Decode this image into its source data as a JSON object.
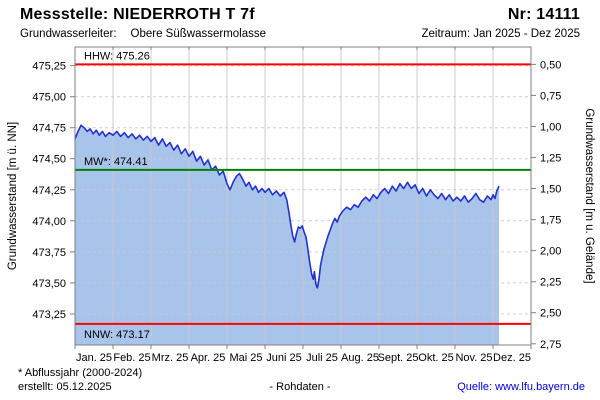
{
  "header": {
    "station_title": "Messstelle: NIEDERROTH T 7f",
    "station_number": "Nr: 14111",
    "aquifer_label": "Grundwasserleiter:",
    "aquifer_value": "Obere Süßwassermolasse",
    "period": "Zeitraum: Jan 2025 - Dez 2025"
  },
  "footer": {
    "footnote": "* Abflussjahr (2000-2024)",
    "created": "erstellt:  05.12.2025",
    "center_label": "- Rohdaten -",
    "source": "Quelle: www.lfu.bayern.de"
  },
  "chart_data": {
    "type": "area",
    "title": "",
    "xlabel": "",
    "ylabel_left": "Grundwasserstand [m ü. NN]",
    "ylabel_right": "Grundwasserstand [m u. Gelände]",
    "x_categories": [
      "Jan. 25",
      "Feb. 25",
      "Mrz. 25",
      "Apr. 25",
      "Mai 25",
      "Juni 25",
      "Juli 25",
      "Aug. 25",
      "Sept. 25",
      "Okt. 25",
      "Nov. 25",
      "Dez. 25"
    ],
    "x_range_months": 12,
    "ylim_left": [
      473.0,
      475.4
    ],
    "ground_level_m_nn": 475.76,
    "grid": true,
    "legend_position": "none",
    "y_ticks_left": [
      {
        "label": "475,25",
        "value": 475.25
      },
      {
        "label": "475,00",
        "value": 475.0
      },
      {
        "label": "474,75",
        "value": 474.75
      },
      {
        "label": "474,50",
        "value": 474.5
      },
      {
        "label": "474,25",
        "value": 474.25
      },
      {
        "label": "474,00",
        "value": 474.0
      },
      {
        "label": "473,75",
        "value": 473.75
      },
      {
        "label": "473,50",
        "value": 473.5
      },
      {
        "label": "473,25",
        "value": 473.25
      }
    ],
    "y_ticks_right": [
      {
        "label": "0,50",
        "depth": 0.5
      },
      {
        "label": "0,75",
        "depth": 0.75
      },
      {
        "label": "1,00",
        "depth": 1.0
      },
      {
        "label": "1,25",
        "depth": 1.25
      },
      {
        "label": "1,50",
        "depth": 1.5
      },
      {
        "label": "1,75",
        "depth": 1.75
      },
      {
        "label": "2,00",
        "depth": 2.0
      },
      {
        "label": "2,25",
        "depth": 2.25
      },
      {
        "label": "2,50",
        "depth": 2.5
      },
      {
        "label": "2,75",
        "depth": 2.75
      }
    ],
    "reference_lines": [
      {
        "id": "hhw",
        "label": "HHW: 475.26",
        "value": 475.26,
        "color": "#ff0000",
        "label_side": "above"
      },
      {
        "id": "mw",
        "label": "MW*: 474.41",
        "value": 474.41,
        "color": "#008000",
        "label_side": "above"
      },
      {
        "id": "nnw",
        "label": "NNW: 473.17",
        "value": 473.17,
        "color": "#ff0000",
        "label_side": "below"
      }
    ],
    "series": [
      {
        "name": "Rohdaten",
        "unit": "m ü. NN",
        "points": [
          [
            0.0,
            474.66
          ],
          [
            0.08,
            474.72
          ],
          [
            0.16,
            474.77
          ],
          [
            0.24,
            474.75
          ],
          [
            0.32,
            474.72
          ],
          [
            0.4,
            474.74
          ],
          [
            0.48,
            474.7
          ],
          [
            0.56,
            474.73
          ],
          [
            0.64,
            474.69
          ],
          [
            0.72,
            474.72
          ],
          [
            0.8,
            474.68
          ],
          [
            0.9,
            474.71
          ],
          [
            1.0,
            474.69
          ],
          [
            1.1,
            474.72
          ],
          [
            1.2,
            474.68
          ],
          [
            1.3,
            474.71
          ],
          [
            1.4,
            474.67
          ],
          [
            1.5,
            474.7
          ],
          [
            1.6,
            474.66
          ],
          [
            1.7,
            474.69
          ],
          [
            1.8,
            474.65
          ],
          [
            1.9,
            474.68
          ],
          [
            2.0,
            474.64
          ],
          [
            2.1,
            474.67
          ],
          [
            2.2,
            474.61
          ],
          [
            2.3,
            474.66
          ],
          [
            2.4,
            474.6
          ],
          [
            2.5,
            474.63
          ],
          [
            2.6,
            474.57
          ],
          [
            2.7,
            474.61
          ],
          [
            2.8,
            474.54
          ],
          [
            2.9,
            474.58
          ],
          [
            3.0,
            474.52
          ],
          [
            3.1,
            474.56
          ],
          [
            3.2,
            474.48
          ],
          [
            3.3,
            474.52
          ],
          [
            3.4,
            474.45
          ],
          [
            3.5,
            474.49
          ],
          [
            3.6,
            474.41
          ],
          [
            3.7,
            474.44
          ],
          [
            3.8,
            474.37
          ],
          [
            3.9,
            474.4
          ],
          [
            4.0,
            474.3
          ],
          [
            4.08,
            474.25
          ],
          [
            4.16,
            474.31
          ],
          [
            4.25,
            474.36
          ],
          [
            4.33,
            474.38
          ],
          [
            4.42,
            474.33
          ],
          [
            4.5,
            474.28
          ],
          [
            4.58,
            474.31
          ],
          [
            4.67,
            474.25
          ],
          [
            4.75,
            474.28
          ],
          [
            4.83,
            474.23
          ],
          [
            4.92,
            474.26
          ],
          [
            5.0,
            474.23
          ],
          [
            5.1,
            474.26
          ],
          [
            5.2,
            474.21
          ],
          [
            5.3,
            474.24
          ],
          [
            5.4,
            474.2
          ],
          [
            5.5,
            474.23
          ],
          [
            5.57,
            474.17
          ],
          [
            5.63,
            474.07
          ],
          [
            5.68,
            473.97
          ],
          [
            5.73,
            473.88
          ],
          [
            5.78,
            473.83
          ],
          [
            5.83,
            473.9
          ],
          [
            5.88,
            473.95
          ],
          [
            5.93,
            473.94
          ],
          [
            5.98,
            473.96
          ],
          [
            6.03,
            473.91
          ],
          [
            6.08,
            473.87
          ],
          [
            6.13,
            473.77
          ],
          [
            6.18,
            473.66
          ],
          [
            6.23,
            473.57
          ],
          [
            6.27,
            473.53
          ],
          [
            6.3,
            473.59
          ],
          [
            6.34,
            473.49
          ],
          [
            6.38,
            473.46
          ],
          [
            6.42,
            473.53
          ],
          [
            6.46,
            473.64
          ],
          [
            6.5,
            473.7
          ],
          [
            6.55,
            473.77
          ],
          [
            6.6,
            473.82
          ],
          [
            6.66,
            473.88
          ],
          [
            6.72,
            473.93
          ],
          [
            6.78,
            473.98
          ],
          [
            6.84,
            474.02
          ],
          [
            6.9,
            473.99
          ],
          [
            6.96,
            474.04
          ],
          [
            7.05,
            474.08
          ],
          [
            7.15,
            474.11
          ],
          [
            7.25,
            474.09
          ],
          [
            7.35,
            474.13
          ],
          [
            7.45,
            474.11
          ],
          [
            7.55,
            474.16
          ],
          [
            7.65,
            474.19
          ],
          [
            7.75,
            474.16
          ],
          [
            7.85,
            474.21
          ],
          [
            7.95,
            474.18
          ],
          [
            8.05,
            474.23
          ],
          [
            8.15,
            474.26
          ],
          [
            8.25,
            474.22
          ],
          [
            8.35,
            474.28
          ],
          [
            8.45,
            474.24
          ],
          [
            8.55,
            474.3
          ],
          [
            8.65,
            474.26
          ],
          [
            8.75,
            474.31
          ],
          [
            8.85,
            474.26
          ],
          [
            8.95,
            474.29
          ],
          [
            9.05,
            474.22
          ],
          [
            9.15,
            474.26
          ],
          [
            9.25,
            474.2
          ],
          [
            9.35,
            474.25
          ],
          [
            9.45,
            474.21
          ],
          [
            9.55,
            474.18
          ],
          [
            9.65,
            474.22
          ],
          [
            9.75,
            474.17
          ],
          [
            9.85,
            474.21
          ],
          [
            9.95,
            474.16
          ],
          [
            10.05,
            474.19
          ],
          [
            10.15,
            474.16
          ],
          [
            10.25,
            474.2
          ],
          [
            10.35,
            474.15
          ],
          [
            10.45,
            474.18
          ],
          [
            10.55,
            474.22
          ],
          [
            10.65,
            474.17
          ],
          [
            10.75,
            474.15
          ],
          [
            10.85,
            474.2
          ],
          [
            10.95,
            474.17
          ],
          [
            11.0,
            474.21
          ],
          [
            11.05,
            474.18
          ],
          [
            11.1,
            474.24
          ],
          [
            11.16,
            474.28
          ]
        ]
      }
    ],
    "colors": {
      "line": "#2233cc",
      "fill": "#a8c4eb",
      "grid": "#c9c9c9",
      "axis": "#808080",
      "hhw": "#ff0000",
      "mw": "#008000",
      "nnw": "#ff0000"
    }
  }
}
